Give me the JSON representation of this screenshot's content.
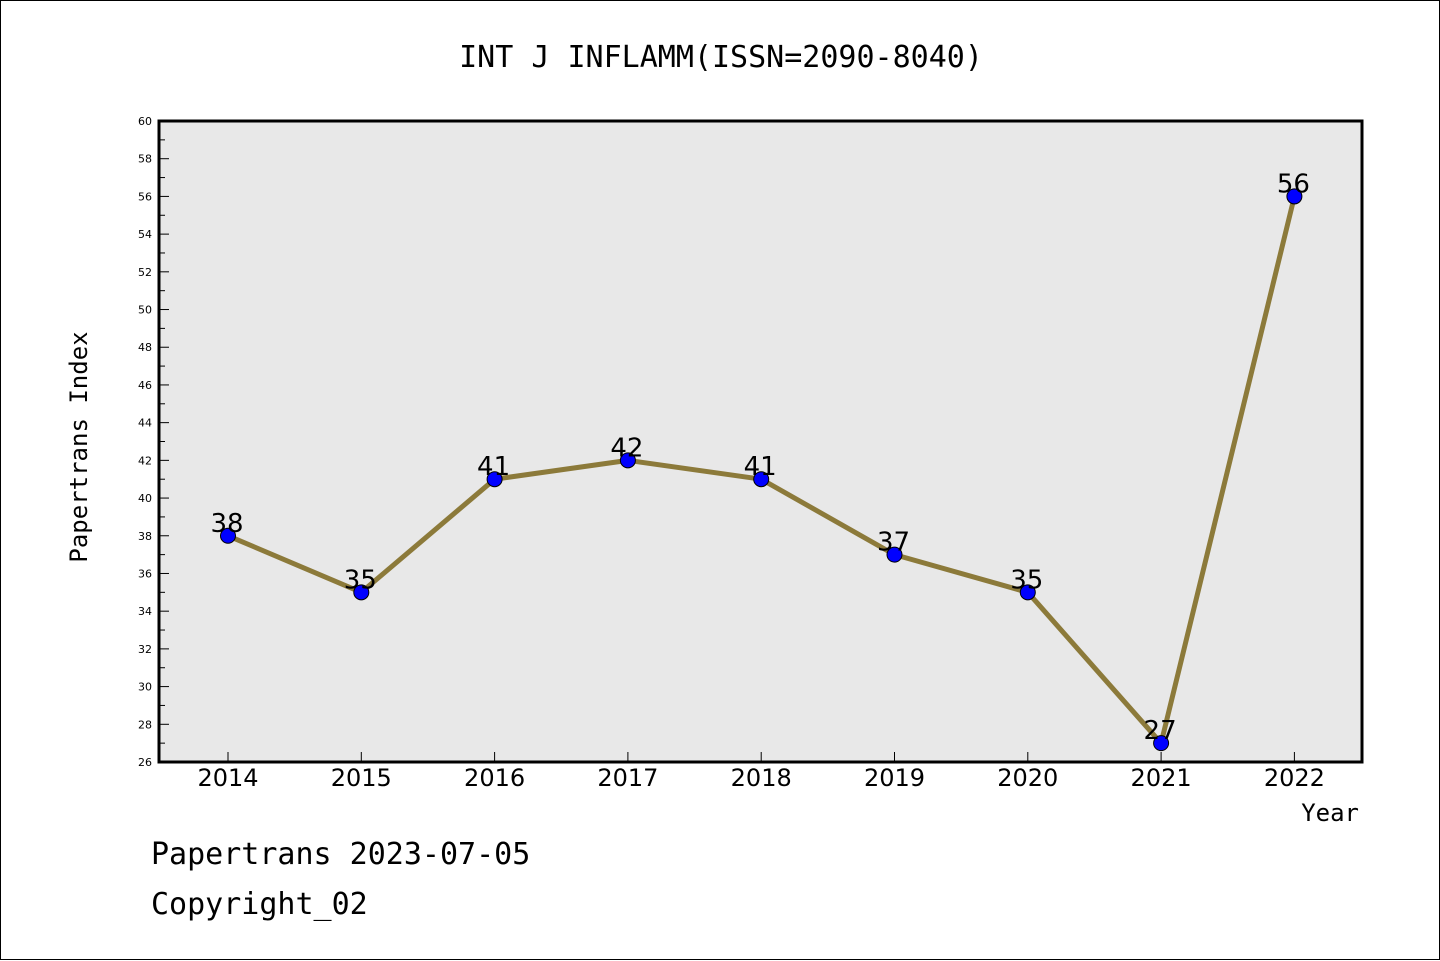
{
  "chart_data": {
    "type": "line",
    "title": "INT J INFLAMM(ISSN=2090-8040)",
    "xlabel": "Year",
    "ylabel": "Papertrans Index",
    "categories": [
      "2014",
      "2015",
      "2016",
      "2017",
      "2018",
      "2019",
      "2020",
      "2021",
      "2022"
    ],
    "series": [
      {
        "values": [
          38,
          35,
          41,
          42,
          41,
          37,
          35,
          27,
          56
        ]
      }
    ],
    "data_labels": [
      "38",
      "35",
      "41",
      "42",
      "41",
      "37",
      "35",
      "27",
      "56"
    ],
    "ylim": [
      26,
      60
    ],
    "y_ticks": [
      26,
      28,
      30,
      32,
      34,
      36,
      38,
      40,
      42,
      44,
      46,
      48,
      50,
      52,
      54,
      56,
      58,
      60
    ],
    "grid": false,
    "legend": "none",
    "colors": {
      "line": "#8c7a3a",
      "marker": "#0000ff",
      "plot_bg": "#e8e8e8"
    }
  },
  "footer": {
    "source": "Papertrans 2023-07-05",
    "copyright": "Copyright_02"
  }
}
